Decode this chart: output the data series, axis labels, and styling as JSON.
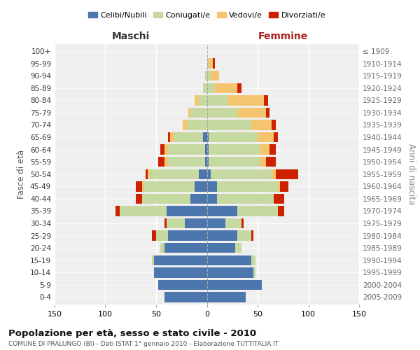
{
  "age_groups": [
    "0-4",
    "5-9",
    "10-14",
    "15-19",
    "20-24",
    "25-29",
    "30-34",
    "35-39",
    "40-44",
    "45-49",
    "50-54",
    "55-59",
    "60-64",
    "65-69",
    "70-74",
    "75-79",
    "80-84",
    "85-89",
    "90-94",
    "95-99",
    "100+"
  ],
  "birth_years": [
    "2005-2009",
    "2000-2004",
    "1995-1999",
    "1990-1994",
    "1985-1989",
    "1980-1984",
    "1975-1979",
    "1970-1974",
    "1965-1969",
    "1960-1964",
    "1955-1959",
    "1950-1954",
    "1945-1949",
    "1940-1944",
    "1935-1939",
    "1930-1934",
    "1925-1929",
    "1920-1924",
    "1915-1919",
    "1910-1914",
    "≤ 1909"
  ],
  "maschi": {
    "celibi": [
      42,
      48,
      52,
      52,
      42,
      38,
      22,
      40,
      16,
      12,
      8,
      2,
      2,
      4,
      0,
      0,
      0,
      0,
      0,
      0,
      0
    ],
    "coniugati": [
      0,
      0,
      0,
      2,
      4,
      12,
      18,
      46,
      48,
      50,
      48,
      36,
      36,
      28,
      20,
      16,
      8,
      4,
      2,
      0,
      0
    ],
    "vedovi": [
      0,
      0,
      0,
      0,
      0,
      0,
      0,
      0,
      0,
      2,
      2,
      4,
      4,
      4,
      4,
      2,
      4,
      0,
      0,
      0,
      0
    ],
    "divorziati": [
      0,
      0,
      0,
      0,
      0,
      4,
      2,
      4,
      6,
      6,
      2,
      6,
      4,
      2,
      0,
      0,
      0,
      0,
      0,
      0,
      0
    ]
  },
  "femmine": {
    "nubili": [
      38,
      54,
      46,
      44,
      28,
      30,
      18,
      30,
      10,
      10,
      4,
      2,
      2,
      2,
      0,
      0,
      0,
      0,
      0,
      0,
      0
    ],
    "coniugate": [
      0,
      0,
      2,
      4,
      6,
      14,
      16,
      40,
      56,
      60,
      60,
      50,
      50,
      48,
      44,
      30,
      20,
      8,
      4,
      2,
      0
    ],
    "vedove": [
      0,
      0,
      0,
      0,
      0,
      0,
      0,
      0,
      0,
      2,
      4,
      6,
      10,
      16,
      20,
      28,
      36,
      22,
      8,
      4,
      0
    ],
    "divorziate": [
      0,
      0,
      0,
      0,
      0,
      2,
      2,
      6,
      10,
      8,
      22,
      10,
      6,
      4,
      4,
      4,
      4,
      4,
      0,
      2,
      0
    ]
  },
  "colors": {
    "celibi": "#4b76ae",
    "coniugati": "#c5d9a0",
    "vedovi": "#f5c46e",
    "divorziati": "#cc2200"
  },
  "title": "Popolazione per età, sesso e stato civile - 2010",
  "subtitle": "COMUNE DI PRALUNGO (BI) - Dati ISTAT 1° gennaio 2010 - Elaborazione TUTTITALIA.IT",
  "xlabel_left": "Maschi",
  "xlabel_right": "Femmine",
  "ylabel_left": "Fasce di età",
  "ylabel_right": "Anni di nascita",
  "xlim": 150,
  "legend_labels": [
    "Celibi/Nubili",
    "Coniugati/e",
    "Vedovi/e",
    "Divorziati/e"
  ],
  "bg_color": "#ffffff",
  "plot_bg": "#efefef",
  "grid_color": "#cccccc"
}
